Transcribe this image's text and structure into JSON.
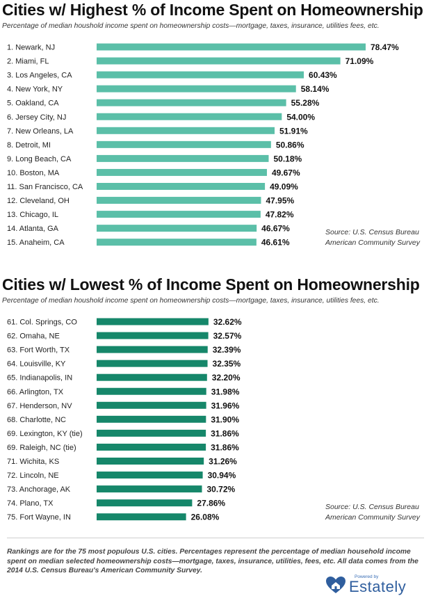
{
  "chart_data": [
    {
      "type": "bar",
      "orientation": "horizontal",
      "title": "Cities w/ Highest % of Income Spent on Homeownership",
      "subtitle": "Percentage of median houshold income spent on homeownership costs—mortgage, taxes, insurance, utilities fees, etc.",
      "categories": [
        "1. Newark, NJ",
        "2. Miami, FL",
        "3. Los Angeles, CA",
        "4. New York, NY",
        "5. Oakland, CA",
        "6. Jersey City, NJ",
        "7. New Orleans, LA",
        "8. Detroit, MI",
        "9. Long Beach, CA",
        "10. Boston, MA",
        "11. San Francisco, CA",
        "12. Cleveland, OH",
        "13. Chicago, IL",
        "14. Atlanta, GA",
        "15. Anaheim, CA"
      ],
      "values": [
        78.47,
        71.09,
        60.43,
        58.14,
        55.28,
        54.0,
        51.91,
        50.86,
        50.18,
        49.67,
        49.09,
        47.95,
        47.82,
        46.67,
        46.61
      ],
      "value_labels": [
        "78.47%",
        "71.09%",
        "60.43%",
        "58.14%",
        "55.28%",
        "54.00%",
        "51.91%",
        "50.86%",
        "50.18%",
        "49.67%",
        "49.09%",
        "47.95%",
        "47.82%",
        "46.67%",
        "46.61%"
      ],
      "bar_color": "#5bbfa8",
      "source": [
        "Source:  U.S. Census Bureau",
        "American Community Survey"
      ],
      "grid": false
    },
    {
      "type": "bar",
      "orientation": "horizontal",
      "title": "Cities w/ Lowest % of Income Spent on Homeownership",
      "subtitle": "Percentage of median houshold income spent on homeownership costs—mortgage, taxes, insurance, utilities fees, etc.",
      "categories": [
        "61. Col. Springs, CO",
        "62. Omaha, NE",
        "63. Fort Worth, TX",
        "64. Louisville, KY",
        "65. Indianapolis, IN",
        "66. Arlington, TX",
        "67. Henderson, NV",
        "68. Charlotte, NC",
        "69. Lexington, KY (tie)",
        "69. Raleigh, NC (tie)",
        "71. Wichita, KS",
        "72. Lincoln, NE",
        "73. Anchorage, AK",
        "74. Plano, TX",
        "75. Fort Wayne, IN"
      ],
      "values": [
        32.62,
        32.57,
        32.39,
        32.35,
        32.2,
        31.98,
        31.96,
        31.9,
        31.86,
        31.86,
        31.26,
        30.94,
        30.72,
        27.86,
        26.08
      ],
      "value_labels": [
        "32.62%",
        "32.57%",
        "32.39%",
        "32.35%",
        "32.20%",
        "31.98%",
        "31.96%",
        "31.90%",
        "31.86%",
        "31.86%",
        "31.26%",
        "30.94%",
        "30.72%",
        "27.86%",
        "26.08%"
      ],
      "bar_color": "#16876a",
      "source": [
        "Source:  U.S. Census Bureau",
        "American Community Survey"
      ],
      "grid": false
    }
  ],
  "footnote": "Rankings are for the 75 most populous U.S. cities. Percentages represent the percentage of median household income spent on median selected homeownership costs—mortgage, taxes, insurance, utilities, fees, etc. All data comes from the 2014 U.S. Census Bureau's American Community Survey.",
  "logo": {
    "powered_by": "Powered by",
    "brand": "Estately",
    "icon": "heart-house-icon",
    "color": "#2f5e9e"
  }
}
